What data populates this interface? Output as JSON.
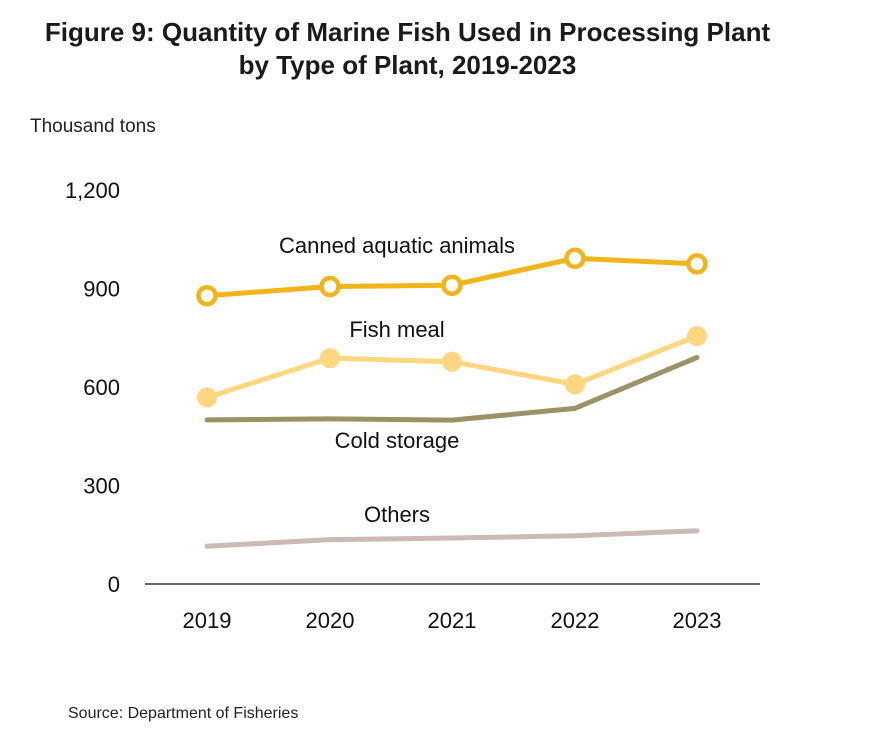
{
  "chart_data": {
    "type": "line",
    "title": "Figure 9: Quantity of Marine Fish Used in Processing Plant",
    "title_line2": "by Type of Plant, 2019-2023",
    "ylabel": "Thousand tons",
    "xlabel": "",
    "source": "Source: Department of Fisheries",
    "categories": [
      "2019",
      "2020",
      "2021",
      "2022",
      "2023"
    ],
    "ylim": [
      0,
      1200
    ],
    "yticks": [
      0,
      300,
      600,
      900,
      1200
    ],
    "ytick_labels": [
      "0",
      "300",
      "600",
      "900",
      "1,200"
    ],
    "grid": false,
    "series": [
      {
        "name": "Canned aquatic animals",
        "values": [
          878,
          906,
          910,
          992,
          975
        ],
        "color": "#F2B418",
        "marker": "open-circle"
      },
      {
        "name": "Fish meal",
        "values": [
          568,
          688,
          677,
          608,
          755
        ],
        "color": "#FCD77F",
        "marker": "filled-circle"
      },
      {
        "name": "Cold storage",
        "values": [
          500,
          503,
          499,
          535,
          690
        ],
        "color": "#9C9266",
        "marker": "none"
      },
      {
        "name": "Others",
        "values": [
          115,
          135,
          140,
          147,
          162
        ],
        "color": "#CDB9B5",
        "marker": "none"
      }
    ]
  }
}
